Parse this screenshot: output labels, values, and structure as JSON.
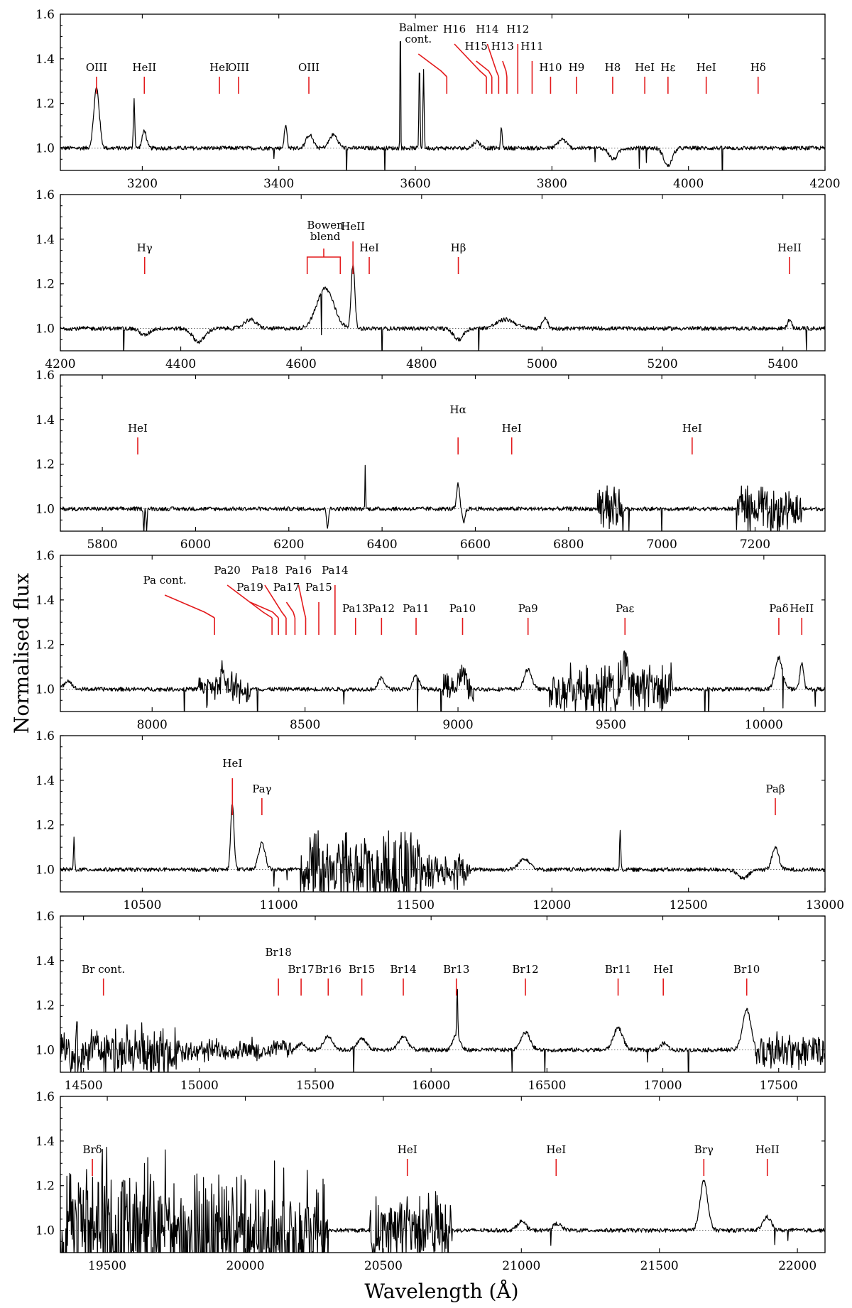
{
  "chart_data": {
    "type": "line",
    "ylabel": "Normalised flux",
    "xlabel": "Wavelength (Å)",
    "colors": {
      "spectrum": "#000000",
      "line_markers": "#e31a1c",
      "reference": "#555555"
    },
    "panels": [
      {
        "xlim": [
          3080,
          4200
        ],
        "ylim": [
          0.9,
          1.6
        ],
        "xticks": [
          3200,
          3400,
          3600,
          3800,
          4000,
          4200
        ],
        "yticks": [
          1.0,
          1.2,
          1.4,
          1.6
        ],
        "features": [
          {
            "x": 3133,
            "amp": 0.27,
            "width": 4
          },
          {
            "x": 3188,
            "amp": 0.22,
            "width": 1
          },
          {
            "x": 3203,
            "amp": 0.08,
            "width": 3
          },
          {
            "x": 3410,
            "amp": 0.1,
            "width": 2
          },
          {
            "x": 3445,
            "amp": 0.06,
            "width": 5
          },
          {
            "x": 3480,
            "amp": 0.06,
            "width": 6
          },
          {
            "x": 3578,
            "amp": 0.65,
            "width": 0.5
          },
          {
            "x": 3606,
            "amp": 0.38,
            "width": 0.8
          },
          {
            "x": 3612,
            "amp": 0.36,
            "width": 0.8
          },
          {
            "x": 3690,
            "amp": 0.03,
            "width": 5
          },
          {
            "x": 3726,
            "amp": 0.1,
            "width": 1
          },
          {
            "x": 3815,
            "amp": 0.04,
            "width": 6
          },
          {
            "x": 3890,
            "amp": -0.05,
            "width": 6
          },
          {
            "x": 3970,
            "amp": -0.08,
            "width": 6
          }
        ],
        "labels": [
          {
            "text": "OIII",
            "x": 3133,
            "row": 0
          },
          {
            "text": "HeII",
            "x": 3203,
            "row": 0
          },
          {
            "text": "HeI",
            "x": 3313,
            "row": 0
          },
          {
            "text": "OIII",
            "x": 3341,
            "row": 0
          },
          {
            "text": "OIII",
            "x": 3444,
            "row": 0
          },
          {
            "text": "Balmer",
            "text2": "cont.",
            "x": 3646,
            "row": 0,
            "dx": -40,
            "dy": -40
          },
          {
            "text": "H16",
            "x": 3704,
            "row": 0,
            "dx": -45,
            "dy": -54
          },
          {
            "text": "H15",
            "x": 3712,
            "row": 0,
            "dx": -22,
            "dy": -30
          },
          {
            "text": "H14",
            "x": 3722,
            "row": 0,
            "dx": -16,
            "dy": -54
          },
          {
            "text": "H13",
            "x": 3734,
            "row": 0,
            "dx": -6,
            "dy": -30
          },
          {
            "text": "H12",
            "x": 3750,
            "row": 0,
            "dx": 0,
            "dy": -54
          },
          {
            "text": "H11",
            "x": 3771,
            "row": 0,
            "dx": 0,
            "dy": -30
          },
          {
            "text": "H10",
            "x": 3798,
            "row": 0
          },
          {
            "text": "H9",
            "x": 3836,
            "row": 0
          },
          {
            "text": "H8",
            "x": 3889,
            "row": 0
          },
          {
            "text": "HeI",
            "x": 3936,
            "row": 0
          },
          {
            "text": "Hε",
            "x": 3970,
            "row": 0
          },
          {
            "text": "HeI",
            "x": 4026,
            "row": 0
          },
          {
            "text": "Hδ",
            "x": 4102,
            "row": 0
          }
        ]
      },
      {
        "xlim": [
          4200,
          5470
        ],
        "ylim": [
          0.9,
          1.6
        ],
        "xticks": [
          4200,
          4400,
          4600,
          4800,
          5000,
          5200,
          5400
        ],
        "yticks": [
          1.0,
          1.2,
          1.4,
          1.6
        ],
        "features": [
          {
            "x": 4340,
            "amp": -0.03,
            "width": 8
          },
          {
            "x": 4430,
            "amp": -0.06,
            "width": 10
          },
          {
            "x": 4515,
            "amp": 0.04,
            "width": 10
          },
          {
            "x": 4640,
            "amp": 0.18,
            "width": 14
          },
          {
            "x": 4686,
            "amp": 0.29,
            "width": 3
          },
          {
            "x": 4861,
            "amp": -0.05,
            "width": 8
          },
          {
            "x": 4940,
            "amp": 0.04,
            "width": 15
          },
          {
            "x": 5005,
            "amp": 0.05,
            "width": 4
          },
          {
            "x": 5411,
            "amp": 0.04,
            "width": 3
          }
        ],
        "labels": [
          {
            "text": "Hγ",
            "x": 4340,
            "row": 0
          },
          {
            "text": "Bowen",
            "text2": "blend",
            "x": 4640,
            "row": 0,
            "bracket": [
              4610,
              4665
            ],
            "dy": -16
          },
          {
            "text": "HeII",
            "x": 4686,
            "row": 0,
            "dy": -30
          },
          {
            "text": "HeI",
            "x": 4713,
            "row": 0
          },
          {
            "text": "Hβ",
            "x": 4861,
            "row": 0
          },
          {
            "text": "HeII",
            "x": 5411,
            "row": 0
          }
        ]
      },
      {
        "xlim": [
          5710,
          7350
        ],
        "ylim": [
          0.9,
          1.6
        ],
        "xticks": [
          5800,
          6000,
          6200,
          6400,
          6600,
          6800,
          7000,
          7200
        ],
        "yticks": [
          1.0,
          1.2,
          1.4,
          1.6
        ],
        "features": [
          {
            "x": 5889,
            "amp": -0.1,
            "width": 1
          },
          {
            "x": 5895,
            "amp": -0.1,
            "width": 1
          },
          {
            "x": 6283,
            "amp": -0.08,
            "width": 2
          },
          {
            "x": 6364,
            "amp": 0.24,
            "width": 0.6
          },
          {
            "x": 6563,
            "amp": 0.11,
            "width": 3
          },
          {
            "x": 6575,
            "amp": -0.06,
            "width": 3
          }
        ],
        "noise_bands": [
          [
            6862,
            6920,
            0.09
          ],
          [
            7160,
            7300,
            0.09
          ]
        ],
        "labels": [
          {
            "text": "HeI",
            "x": 5876,
            "row": 0
          },
          {
            "text": "Hα",
            "x": 6563,
            "row": 0,
            "dy": -26
          },
          {
            "text": "HeI",
            "x": 6678,
            "row": 0
          },
          {
            "text": "HeI",
            "x": 7065,
            "row": 0
          }
        ]
      },
      {
        "xlim": [
          7700,
          10200
        ],
        "ylim": [
          0.9,
          1.6
        ],
        "xticks": [
          8000,
          8500,
          9000,
          9500,
          10000
        ],
        "yticks": [
          1.0,
          1.2,
          1.4,
          1.6
        ],
        "features": [
          {
            "x": 7725,
            "amp": 0.04,
            "width": 12
          },
          {
            "x": 8230,
            "amp": 0.09,
            "width": 6
          },
          {
            "x": 8750,
            "amp": 0.05,
            "width": 10
          },
          {
            "x": 8863,
            "amp": 0.06,
            "width": 10
          },
          {
            "x": 9015,
            "amp": 0.07,
            "width": 10
          },
          {
            "x": 9229,
            "amp": 0.09,
            "width": 12
          },
          {
            "x": 9546,
            "amp": 0.12,
            "width": 10
          },
          {
            "x": 10049,
            "amp": 0.14,
            "width": 12
          },
          {
            "x": 10124,
            "amp": 0.12,
            "width": 6
          }
        ],
        "noise_bands": [
          [
            8150,
            8320,
            0.06
          ],
          [
            8950,
            9050,
            0.06
          ],
          [
            9300,
            9700,
            0.1
          ]
        ],
        "labels": [
          {
            "text": "Pa cont.",
            "x": 8204,
            "row": 0,
            "dx": -70,
            "dy": -40
          },
          {
            "text": "Pa20",
            "x": 8392,
            "row": 0,
            "dx": -63,
            "dy": -54
          },
          {
            "text": "Pa19",
            "x": 8413,
            "row": 0,
            "dx": -40,
            "dy": -30
          },
          {
            "text": "Pa18",
            "x": 8438,
            "row": 0,
            "dx": -30,
            "dy": -54
          },
          {
            "text": "Pa17",
            "x": 8467,
            "row": 0,
            "dx": -12,
            "dy": -30
          },
          {
            "text": "Pa16",
            "x": 8502,
            "row": 0,
            "dx": -10,
            "dy": -54
          },
          {
            "text": "Pa15",
            "x": 8545,
            "row": 0,
            "dy": -30
          },
          {
            "text": "Pa14",
            "x": 8598,
            "row": 0,
            "dy": -54
          },
          {
            "text": "Pa13",
            "x": 8665,
            "row": 0
          },
          {
            "text": "Pa12",
            "x": 8750,
            "row": 0
          },
          {
            "text": "Pa11",
            "x": 8863,
            "row": 0
          },
          {
            "text": "Pa10",
            "x": 9015,
            "row": 0
          },
          {
            "text": "Pa9",
            "x": 9229,
            "row": 0
          },
          {
            "text": "Paε",
            "x": 9546,
            "row": 0
          },
          {
            "text": "Paδ",
            "x": 10049,
            "row": 0
          },
          {
            "text": "HeII",
            "x": 10124,
            "row": 0
          }
        ]
      },
      {
        "xlim": [
          10200,
          13000
        ],
        "ylim": [
          0.9,
          1.6
        ],
        "xticks": [
          10500,
          11000,
          11500,
          12000,
          12500,
          13000
        ],
        "yticks": [
          1.0,
          1.2,
          1.4,
          1.6
        ],
        "features": [
          {
            "x": 10250,
            "amp": 0.14,
            "width": 2
          },
          {
            "x": 10830,
            "amp": 0.3,
            "width": 6
          },
          {
            "x": 10938,
            "amp": 0.12,
            "width": 12
          },
          {
            "x": 11900,
            "amp": 0.05,
            "width": 20
          },
          {
            "x": 12250,
            "amp": 0.18,
            "width": 2
          },
          {
            "x": 12818,
            "amp": 0.1,
            "width": 12
          },
          {
            "x": 12700,
            "amp": -0.04,
            "width": 20
          }
        ],
        "noise_bands": [
          [
            11080,
            11520,
            0.15
          ],
          [
            11520,
            11700,
            0.07
          ]
        ],
        "labels": [
          {
            "text": "HeI",
            "x": 10830,
            "row": 0,
            "dy": -36
          },
          {
            "text": "Paγ",
            "x": 10938,
            "row": 0
          },
          {
            "text": "Paβ",
            "x": 12818,
            "row": 0
          }
        ]
      },
      {
        "xlim": [
          14400,
          17700
        ],
        "ylim": [
          0.9,
          1.6
        ],
        "xticks": [
          14500,
          15000,
          15500,
          16000,
          16500,
          17000,
          17500
        ],
        "yticks": [
          1.0,
          1.2,
          1.4,
          1.6
        ],
        "features": [
          {
            "x": 15341,
            "amp": 0.02,
            "width": 15
          },
          {
            "x": 15439,
            "amp": 0.03,
            "width": 15
          },
          {
            "x": 15556,
            "amp": 0.06,
            "width": 20
          },
          {
            "x": 15701,
            "amp": 0.05,
            "width": 20
          },
          {
            "x": 15880,
            "amp": 0.06,
            "width": 20
          },
          {
            "x": 16109,
            "amp": 0.07,
            "width": 15
          },
          {
            "x": 16113,
            "amp": 0.22,
            "width": 2
          },
          {
            "x": 16407,
            "amp": 0.08,
            "width": 20
          },
          {
            "x": 16807,
            "amp": 0.1,
            "width": 20
          },
          {
            "x": 17006,
            "amp": 0.03,
            "width": 15
          },
          {
            "x": 17362,
            "amp": 0.18,
            "width": 18
          }
        ],
        "noise_bands": [
          [
            14400,
            14900,
            0.1
          ],
          [
            14900,
            15400,
            0.04
          ],
          [
            17400,
            17700,
            0.07
          ]
        ],
        "labels": [
          {
            "text": "Br cont.",
            "x": 14586,
            "row": 0
          },
          {
            "text": "Br18",
            "x": 15341,
            "row": 0,
            "dy": -24
          },
          {
            "text": "Br17",
            "x": 15439,
            "row": 0
          },
          {
            "text": "Br16",
            "x": 15556,
            "row": 0
          },
          {
            "text": "Br15",
            "x": 15701,
            "row": 0
          },
          {
            "text": "Br14",
            "x": 15880,
            "row": 0
          },
          {
            "text": "Br13",
            "x": 16109,
            "row": 0
          },
          {
            "text": "Br12",
            "x": 16407,
            "row": 0
          },
          {
            "text": "Br11",
            "x": 16807,
            "row": 0
          },
          {
            "text": "HeI",
            "x": 17002,
            "row": 0
          },
          {
            "text": "Br10",
            "x": 17362,
            "row": 0
          }
        ]
      },
      {
        "xlim": [
          19330,
          22100
        ],
        "ylim": [
          0.9,
          1.6
        ],
        "xticks": [
          19500,
          20000,
          20500,
          21000,
          21500,
          22000
        ],
        "yticks": [
          1.0,
          1.2,
          1.4,
          1.6
        ],
        "features": [
          {
            "x": 21000,
            "amp": 0.04,
            "width": 15
          },
          {
            "x": 21130,
            "amp": 0.03,
            "width": 15
          },
          {
            "x": 21661,
            "amp": 0.22,
            "width": 14
          },
          {
            "x": 21890,
            "amp": 0.06,
            "width": 15
          }
        ],
        "noise_bands": [
          [
            19330,
            19900,
            0.3
          ],
          [
            19900,
            20300,
            0.22
          ],
          [
            20450,
            20750,
            0.14
          ]
        ],
        "labels": [
          {
            "text": "Brδ",
            "x": 19446,
            "row": 0
          },
          {
            "text": "HeI",
            "x": 20587,
            "row": 0
          },
          {
            "text": "HeI",
            "x": 21126,
            "row": 0
          },
          {
            "text": "Brγ",
            "x": 21661,
            "row": 0
          },
          {
            "text": "HeII",
            "x": 21891,
            "row": 0
          }
        ]
      }
    ]
  }
}
